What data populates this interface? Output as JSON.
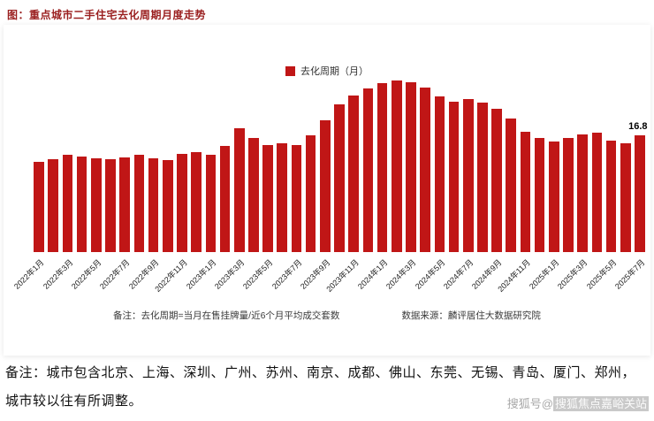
{
  "page": {
    "title": "图：重点城市二手住宅去化周期月度走势",
    "legend_label": "去化周期（月）",
    "footnote_note": "备注：去化周期=当月在售挂牌量/近6个月平均成交套数",
    "footnote_source": "数据来源：麟评居住大数据研究院",
    "bottom_note_line1": "备注：城市包含北京、上海、深圳、广州、苏州、南京、成都、佛山、东莞、无锡、青岛、厦门、郑州，",
    "bottom_note_line2": "城市较以往有所调整。",
    "watermark_prefix": "搜狐号@",
    "watermark_suffix": "搜狐焦点嘉峪关站"
  },
  "colors": {
    "bar": "#c01616",
    "title": "#9a1f1f"
  },
  "chart_data": {
    "type": "bar",
    "title": "重点城市二手住宅去化周期月度走势",
    "series_name": "去化周期（月）",
    "legend_position": "top",
    "grid": false,
    "xlabel": "",
    "ylabel": "去化周期（月）",
    "ylim": [
      0,
      26
    ],
    "tick_every": 2,
    "bar_color": "#c01616",
    "last_value_label": "16.8",
    "categories": [
      "2022年1月",
      "2022年2月",
      "2022年3月",
      "2022年4月",
      "2022年5月",
      "2022年6月",
      "2022年7月",
      "2022年8月",
      "2022年9月",
      "2022年10月",
      "2022年11月",
      "2022年12月",
      "2023年1月",
      "2023年2月",
      "2023年3月",
      "2023年4月",
      "2023年5月",
      "2023年6月",
      "2023年7月",
      "2023年8月",
      "2023年9月",
      "2023年10月",
      "2023年11月",
      "2023年12月",
      "2024年1月",
      "2024年2月",
      "2024年3月",
      "2024年4月",
      "2024年5月",
      "2024年6月",
      "2024年7月",
      "2024年8月",
      "2024年9月",
      "2024年10月",
      "2024年11月",
      "2024年12月",
      "2025年1月",
      "2025年2月",
      "2025年3月",
      "2025年4月",
      "2025年5月",
      "2025年6月",
      "2025年7月"
    ],
    "values": [
      13.0,
      13.3,
      13.9,
      13.7,
      13.5,
      13.3,
      13.6,
      13.9,
      13.4,
      13.2,
      14.1,
      14.3,
      13.9,
      15.2,
      17.8,
      16.3,
      15.3,
      15.6,
      15.4,
      16.8,
      18.9,
      21.2,
      22.4,
      23.5,
      24.2,
      24.6,
      24.4,
      23.6,
      22.3,
      21.6,
      22.0,
      21.4,
      20.6,
      19.1,
      17.3,
      16.4,
      15.8,
      16.4,
      16.9,
      17.1,
      16.0,
      15.6,
      16.8
    ]
  }
}
